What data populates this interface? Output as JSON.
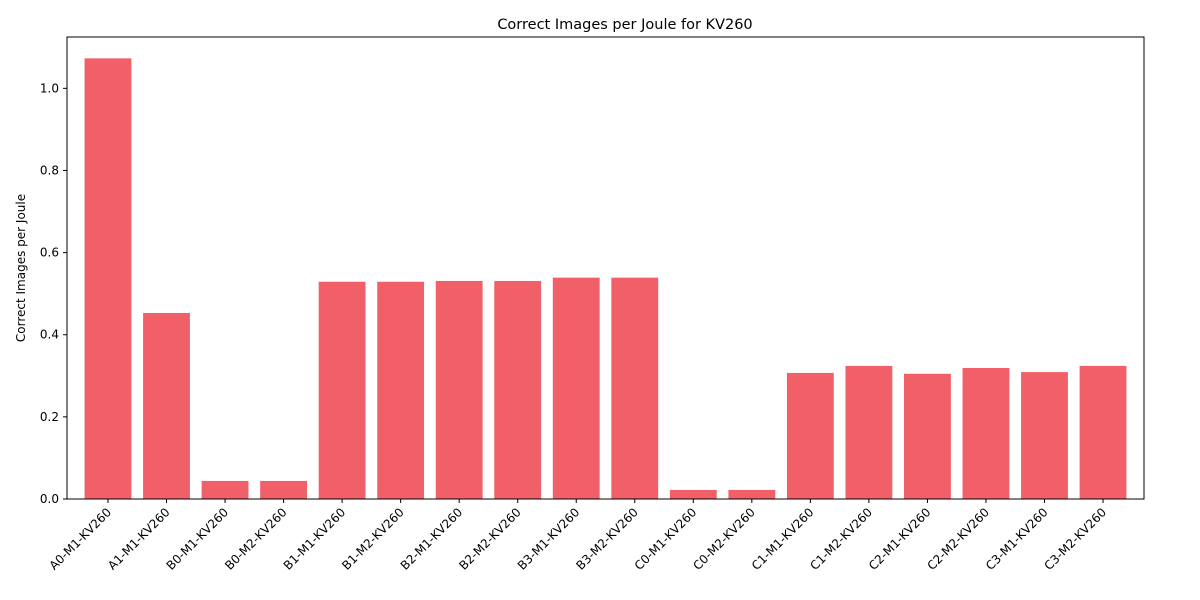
{
  "chart_data": {
    "type": "bar",
    "title": "Correct Images per Joule for KV260",
    "xlabel": "",
    "ylabel": "Correct Images per Joule",
    "ylim": [
      0,
      1.125
    ],
    "yticks": [
      0.0,
      0.2,
      0.4,
      0.6,
      0.8,
      1.0
    ],
    "ytick_labels": [
      "0.0",
      "0.2",
      "0.4",
      "0.6",
      "0.8",
      "1.0"
    ],
    "grid": false,
    "legend": "none",
    "bar_color": "#f15f68",
    "categories": [
      "A0-M1-KV260",
      "A1-M1-KV260",
      "B0-M1-KV260",
      "B0-M2-KV260",
      "B1-M1-KV260",
      "B1-M2-KV260",
      "B2-M1-KV260",
      "B2-M2-KV260",
      "B3-M1-KV260",
      "B3-M2-KV260",
      "C0-M1-KV260",
      "C0-M2-KV260",
      "C1-M1-KV260",
      "C1-M2-KV260",
      "C2-M1-KV260",
      "C2-M2-KV260",
      "C3-M1-KV260",
      "C3-M2-KV260"
    ],
    "values": [
      1.073,
      0.453,
      0.044,
      0.044,
      0.529,
      0.529,
      0.531,
      0.531,
      0.539,
      0.539,
      0.022,
      0.022,
      0.307,
      0.324,
      0.305,
      0.319,
      0.309,
      0.324
    ]
  }
}
